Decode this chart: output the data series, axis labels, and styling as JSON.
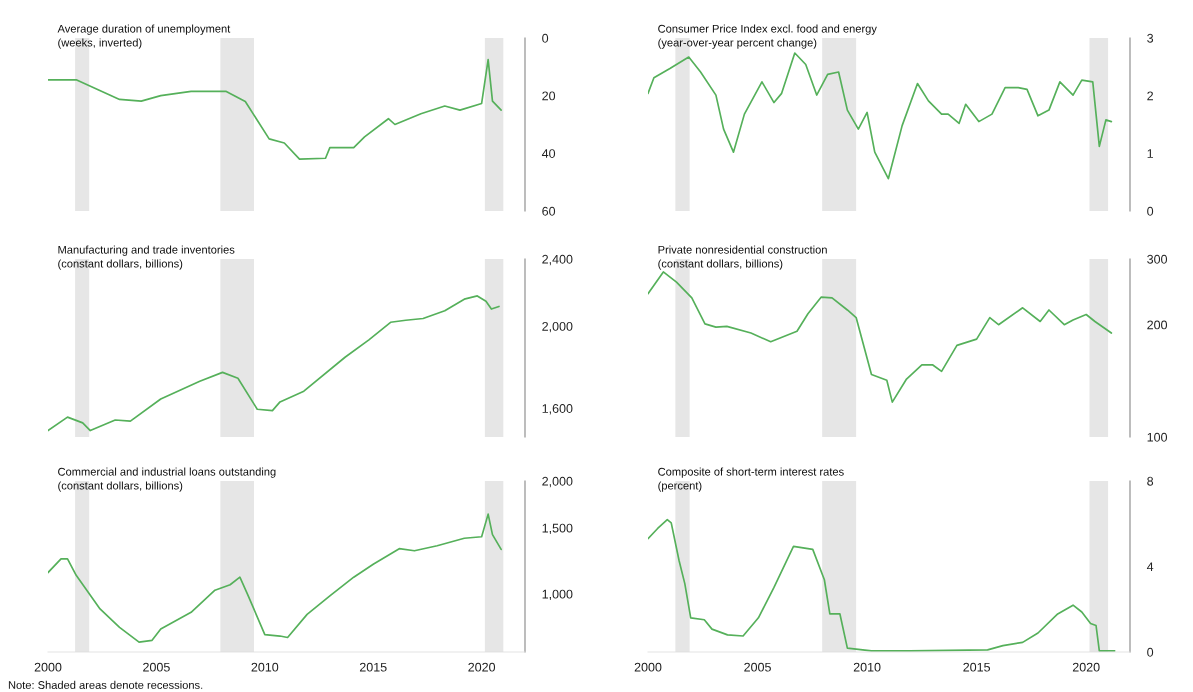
{
  "chart_data": [
    {
      "type": "line",
      "title": "Average duration of unemployment",
      "subtitle": "(weeks, inverted)",
      "color": "#55b05a",
      "xlim": [
        2000,
        2022
      ],
      "xticks": [
        2000,
        2005,
        2010,
        2015,
        2020
      ],
      "ylim": [
        60,
        0
      ],
      "yticks": [
        0,
        20,
        40,
        60
      ],
      "tick_labels": "y",
      "x": [
        2000,
        2001.3,
        2003.3,
        2004.3,
        2005.2,
        2006.6,
        2008.2,
        2009.1,
        2010.2,
        2010.9,
        2011.6,
        2012.8,
        2013,
        2014.1,
        2014.6,
        2015.7,
        2016,
        2017.2,
        2018.3,
        2019,
        2020,
        2020.3,
        2020.5,
        2020.9
      ],
      "values": [
        14.5,
        14.5,
        21.3,
        21.9,
        20,
        18.5,
        18.5,
        22,
        35,
        36.4,
        42,
        41.7,
        38,
        38,
        34.3,
        28,
        30,
        26.3,
        23.6,
        25,
        22.7,
        7.5,
        21.9,
        25
      ],
      "bands": [
        {
          "axis": "x",
          "from": 2001.25,
          "to": 2001.9,
          "color": "#e6e6e6"
        },
        {
          "axis": "x",
          "from": 2007.95,
          "to": 2009.5,
          "color": "#e6e6e6"
        },
        {
          "axis": "x",
          "from": 2020.15,
          "to": 2021,
          "color": "#e6e6e6"
        }
      ]
    },
    {
      "type": "line",
      "title": "Consumer Price Index excl. food and energy",
      "subtitle": "(year-over-year percent change)",
      "color": "#55b05a",
      "xlim": [
        2000,
        2022
      ],
      "xticks": [
        2000,
        2005,
        2010,
        2015,
        2020
      ],
      "ylim": [
        0,
        3
      ],
      "yticks": [
        0,
        1,
        2,
        3
      ],
      "tick_labels": "y",
      "x": [
        2000,
        2000.27,
        2001.0,
        2001.86,
        2002.4,
        2003.1,
        2003.45,
        2003.9,
        2004.4,
        2005.2,
        2005.75,
        2006.1,
        2006.7,
        2007.2,
        2007.7,
        2008.2,
        2008.7,
        2009.1,
        2009.6,
        2010.0,
        2010.35,
        2010.97,
        2011.6,
        2012.3,
        2012.8,
        2013.4,
        2013.7,
        2014.2,
        2014.5,
        2015.1,
        2015.7,
        2016.3,
        2016.9,
        2017.3,
        2017.8,
        2018.3,
        2018.8,
        2019.4,
        2019.8,
        2020.3,
        2020.6,
        2020.9,
        2021.15
      ],
      "values": [
        2.04,
        2.31,
        2.47,
        2.67,
        2.41,
        2.01,
        1.42,
        1.02,
        1.68,
        2.24,
        1.88,
        2.04,
        2.74,
        2.54,
        2.01,
        2.37,
        2.41,
        1.75,
        1.42,
        1.71,
        1.02,
        0.56,
        1.48,
        2.21,
        1.91,
        1.68,
        1.68,
        1.52,
        1.85,
        1.55,
        1.68,
        2.14,
        2.14,
        2.11,
        1.65,
        1.75,
        2.24,
        2.01,
        2.27,
        2.24,
        1.12,
        1.58,
        1.55
      ],
      "bands": [
        {
          "axis": "x",
          "from": 2001.25,
          "to": 2001.9,
          "color": "#e6e6e6"
        },
        {
          "axis": "x",
          "from": 2007.95,
          "to": 2009.5,
          "color": "#e6e6e6"
        },
        {
          "axis": "x",
          "from": 2020.15,
          "to": 2021,
          "color": "#e6e6e6"
        }
      ]
    },
    {
      "type": "line",
      "title": "Manufacturing and trade inventories",
      "subtitle": "(constant dollars, billions)",
      "color": "#55b05a",
      "log": true,
      "xlim": [
        2000,
        2022
      ],
      "xticks": [
        2000,
        2005,
        2010,
        2015,
        2020
      ],
      "ylim": [
        1480,
        2400
      ],
      "yticks": [
        {
          "value": 1600,
          "label": "1,600"
        },
        {
          "value": 2000,
          "label": "2,000"
        },
        {
          "value": 2400,
          "label": "2,400"
        }
      ],
      "tick_labels": "y",
      "x": [
        2000,
        2000.9,
        2001.6,
        2001.95,
        2003.1,
        2003.8,
        2005.2,
        2007.0,
        2008.05,
        2008.76,
        2009.65,
        2010.35,
        2010.7,
        2011.8,
        2013.7,
        2014.8,
        2015.8,
        2016.5,
        2017.3,
        2018.3,
        2019.2,
        2019.8,
        2020.2,
        2020.45,
        2020.8
      ],
      "values": [
        1506,
        1562,
        1538,
        1506,
        1550,
        1545,
        1641,
        1722,
        1764,
        1736,
        1596,
        1590,
        1628,
        1676,
        1838,
        1927,
        2021,
        2032,
        2042,
        2085,
        2152,
        2171,
        2140,
        2095,
        2110
      ],
      "bands": [
        {
          "axis": "x",
          "from": 2001.25,
          "to": 2001.9,
          "color": "#e6e6e6"
        },
        {
          "axis": "x",
          "from": 2007.95,
          "to": 2009.5,
          "color": "#e6e6e6"
        },
        {
          "axis": "x",
          "from": 2020.15,
          "to": 2021,
          "color": "#e6e6e6"
        }
      ]
    },
    {
      "type": "line",
      "title": "Private nonresidential construction",
      "subtitle": "(constant dollars, billions)",
      "color": "#55b05a",
      "log": true,
      "xlim": [
        2000,
        2022
      ],
      "xticks": [
        2000,
        2005,
        2010,
        2015,
        2020
      ],
      "ylim": [
        100,
        300
      ],
      "yticks": [
        100,
        200,
        300
      ],
      "tick_labels": "y",
      "x": [
        2000,
        2000.7,
        2001.3,
        2002.0,
        2002.6,
        2003.1,
        2003.6,
        2004.7,
        2005.6,
        2006.8,
        2007.3,
        2007.9,
        2008.4,
        2009.1,
        2009.5,
        2010.2,
        2010.9,
        2011.15,
        2011.8,
        2012.5,
        2013.0,
        2013.4,
        2014.1,
        2015.0,
        2015.6,
        2016.0,
        2017.1,
        2017.9,
        2018.3,
        2019.0,
        2019.4,
        2020.0,
        2020.4,
        2021.15
      ],
      "values": [
        242,
        277,
        260,
        236,
        201,
        197,
        198,
        190,
        180,
        192,
        214,
        237,
        236,
        219,
        209,
        147,
        142,
        124,
        143,
        156,
        156,
        150,
        176,
        183,
        209,
        200,
        222,
        204,
        219,
        200,
        206,
        213,
        204,
        190
      ],
      "bands": [
        {
          "axis": "x",
          "from": 2001.25,
          "to": 2001.9,
          "color": "#e6e6e6"
        },
        {
          "axis": "x",
          "from": 2007.95,
          "to": 2009.5,
          "color": "#e6e6e6"
        },
        {
          "axis": "x",
          "from": 2020.15,
          "to": 2021,
          "color": "#e6e6e6"
        }
      ]
    },
    {
      "type": "line",
      "title": "Commercial and industrial loans outstanding",
      "subtitle": "(constant dollars, billions)",
      "color": "#55b05a",
      "log": true,
      "xlim": [
        2000,
        2022
      ],
      "xticks": [
        2000,
        2005,
        2010,
        2015,
        2020
      ],
      "ylim": [
        700,
        2000
      ],
      "yticks": [
        {
          "value": 1000,
          "label": "1,000"
        },
        {
          "value": 1500,
          "label": "1,500"
        },
        {
          "value": 2000,
          "label": "2,000"
        }
      ],
      "x": [
        2000,
        2000.6,
        2000.9,
        2001.3,
        2002.4,
        2003.3,
        2004.2,
        2004.8,
        2005.2,
        2006.6,
        2007.7,
        2008.4,
        2008.85,
        2009.2,
        2010.0,
        2010.7,
        2011.05,
        2011.95,
        2013.0,
        2014.1,
        2015.0,
        2016.2,
        2016.9,
        2017.95,
        2019.2,
        2020.0,
        2020.3,
        2020.5,
        2020.9
      ],
      "values": [
        1140,
        1240,
        1240,
        1121,
        912,
        814,
        744,
        752,
        806,
        893,
        1023,
        1058,
        1108,
        999,
        779,
        772,
        765,
        882,
        988,
        1108,
        1200,
        1320,
        1303,
        1344,
        1407,
        1420,
        1632,
        1439,
        1314
      ],
      "bands": [
        {
          "axis": "x",
          "from": 2001.25,
          "to": 2001.9,
          "color": "#e6e6e6"
        },
        {
          "axis": "x",
          "from": 2007.95,
          "to": 2009.5,
          "color": "#e6e6e6"
        },
        {
          "axis": "x",
          "from": 2020.15,
          "to": 2021,
          "color": "#e6e6e6"
        }
      ],
      "annotations": [
        "Note: Shaded areas denote recessions."
      ]
    },
    {
      "type": "line",
      "title": "Composite of short-term interest rates",
      "subtitle": "(percent)",
      "color": "#55b05a",
      "xlim": [
        2000,
        2022
      ],
      "xticks": [
        2000,
        2005,
        2010,
        2015,
        2020
      ],
      "ylim": [
        0,
        8
      ],
      "yticks": [
        0,
        4,
        8
      ],
      "x": [
        2000,
        2000.44,
        2000.88,
        2001.06,
        2001.42,
        2001.68,
        2001.95,
        2002.57,
        2002.92,
        2003.63,
        2004.34,
        2005.04,
        2005.75,
        2006.64,
        2007.52,
        2008.05,
        2008.3,
        2008.76,
        2009.1,
        2010.2,
        2011.95,
        2015.5,
        2016.2,
        2017.1,
        2017.8,
        2018.7,
        2019.4,
        2019.8,
        2020.2,
        2020.45,
        2020.6,
        2021.3
      ],
      "values": [
        5.3,
        5.78,
        6.19,
        6.04,
        4.27,
        3.2,
        1.6,
        1.51,
        1.07,
        0.8,
        0.75,
        1.6,
        3.02,
        4.94,
        4.8,
        3.38,
        1.78,
        1.78,
        0.18,
        0.05,
        0.05,
        0.1,
        0.3,
        0.45,
        0.89,
        1.78,
        2.19,
        1.87,
        1.33,
        1.24,
        0.05,
        0.05
      ],
      "bands": [
        {
          "axis": "x",
          "from": 2001.25,
          "to": 2001.9,
          "color": "#e6e6e6"
        },
        {
          "axis": "x",
          "from": 2007.95,
          "to": 2009.5,
          "color": "#e6e6e6"
        },
        {
          "axis": "x",
          "from": 2020.15,
          "to": 2021,
          "color": "#e6e6e6"
        }
      ]
    }
  ]
}
